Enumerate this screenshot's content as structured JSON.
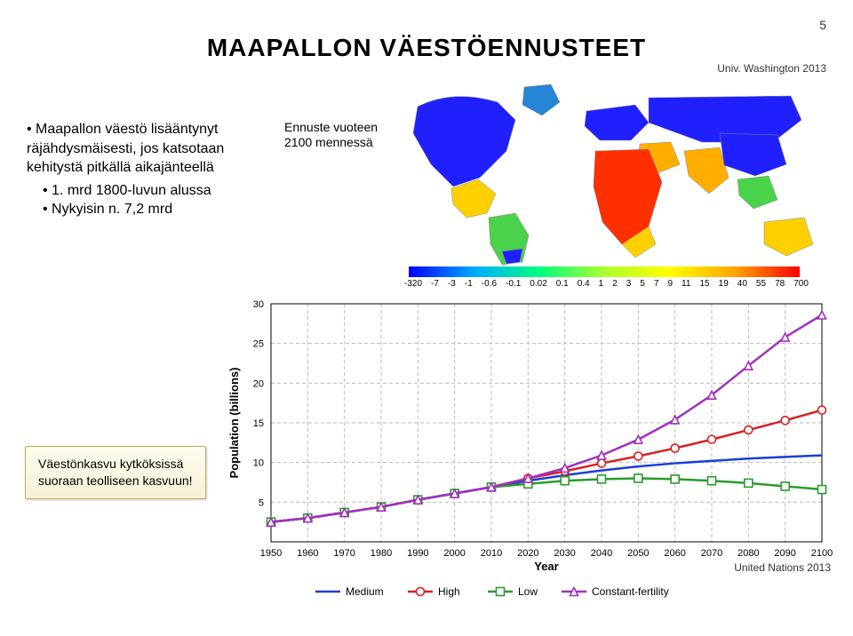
{
  "page_number": "5",
  "title": {
    "text": "MAAPALLON VÄESTÖENNUSTEET",
    "fontsize": 28,
    "color": "#000000",
    "weight": "bold"
  },
  "attribution": "Univ. Washington 2013",
  "bullets": {
    "level1": "Maapallon väestö lisääntynyt räjähdysmäisesti, jos katsotaan kehitystä pitkällä aikajänteellä",
    "level2a": "1. mrd 1800-luvun alussa",
    "level2b": "Nykyisin n. 7,2 mrd"
  },
  "map_label_line1": "Ennuste vuoteen",
  "map_label_line2": "2100 mennessä",
  "map": {
    "type": "choropleth-world-map",
    "colorbar_values": [
      "-320",
      "-7",
      "-3",
      "-1",
      "-0.6",
      "-0.1",
      "0.02",
      "0.1",
      "0.4",
      "1",
      "2",
      "3",
      "5",
      "7",
      "9",
      "11",
      "15",
      "19",
      "40",
      "55",
      "78",
      "700"
    ],
    "gradient_colors": [
      "#0000ff",
      "#00aaff",
      "#00ff7f",
      "#adff2f",
      "#ffff00",
      "#ffa500",
      "#ff0000"
    ]
  },
  "chart": {
    "type": "line",
    "xlabel": "Year",
    "ylabel": "Population (billions)",
    "label_fontsize": 13,
    "tick_fontsize": 11,
    "xlim": [
      1950,
      2100
    ],
    "ylim": [
      0,
      30
    ],
    "xtick_step": 10,
    "ytick_step": 5,
    "xticks": [
      1950,
      1960,
      1970,
      1980,
      1990,
      2000,
      2010,
      2020,
      2030,
      2040,
      2050,
      2060,
      2070,
      2080,
      2090,
      2100
    ],
    "yticks": [
      5,
      10,
      15,
      20,
      25,
      30
    ],
    "grid": true,
    "grid_color": "#bbbbbb",
    "grid_dash": "4,3",
    "background_color": "#ffffff",
    "line_width": 2.5,
    "marker_size": 4.5,
    "series": [
      {
        "name": "Medium",
        "color": "#1a3fd6",
        "marker": "none",
        "x": [
          1950,
          1960,
          1970,
          1980,
          1990,
          2000,
          2010,
          2020,
          2030,
          2040,
          2050,
          2060,
          2070,
          2080,
          2090,
          2100
        ],
        "y": [
          2.5,
          3.0,
          3.7,
          4.4,
          5.3,
          6.1,
          6.9,
          7.7,
          8.4,
          9.0,
          9.5,
          9.9,
          10.2,
          10.5,
          10.7,
          10.9
        ]
      },
      {
        "name": "High",
        "color": "#d62222",
        "marker": "circle",
        "x": [
          1950,
          1960,
          1970,
          1980,
          1990,
          2000,
          2010,
          2020,
          2030,
          2040,
          2050,
          2060,
          2070,
          2080,
          2090,
          2100
        ],
        "y": [
          2.5,
          3.0,
          3.7,
          4.4,
          5.3,
          6.1,
          6.9,
          8.0,
          8.9,
          9.9,
          10.8,
          11.8,
          12.9,
          14.1,
          15.3,
          16.6
        ]
      },
      {
        "name": "Low",
        "color": "#2a9c2a",
        "marker": "square",
        "x": [
          1950,
          1960,
          1970,
          1980,
          1990,
          2000,
          2010,
          2020,
          2030,
          2040,
          2050,
          2060,
          2070,
          2080,
          2090,
          2100
        ],
        "y": [
          2.5,
          3.0,
          3.7,
          4.4,
          5.3,
          6.1,
          6.9,
          7.3,
          7.7,
          7.9,
          8.0,
          7.9,
          7.7,
          7.4,
          7.0,
          6.6
        ]
      },
      {
        "name": "Constant-fertility",
        "color": "#a030c0",
        "marker": "triangle",
        "x": [
          1950,
          1960,
          1970,
          1980,
          1990,
          2000,
          2010,
          2020,
          2030,
          2040,
          2050,
          2060,
          2070,
          2080,
          2090,
          2100
        ],
        "y": [
          2.5,
          3.0,
          3.7,
          4.4,
          5.3,
          6.1,
          6.9,
          8.0,
          9.3,
          10.9,
          12.9,
          15.4,
          18.5,
          22.2,
          25.8,
          28.6
        ]
      }
    ],
    "legend": {
      "position": "bottom",
      "items": [
        "Medium",
        "High",
        "Low",
        "Constant-fertility"
      ],
      "colors": [
        "#1a3fd6",
        "#d62222",
        "#2a9c2a",
        "#a030c0"
      ],
      "markers": [
        "none",
        "circle",
        "square",
        "triangle"
      ]
    }
  },
  "callout_line1": "Väestönkasvu kytköksissä",
  "callout_line2": "suoraan teolliseen kasvuun!",
  "footer_source": "United Nations 2013"
}
